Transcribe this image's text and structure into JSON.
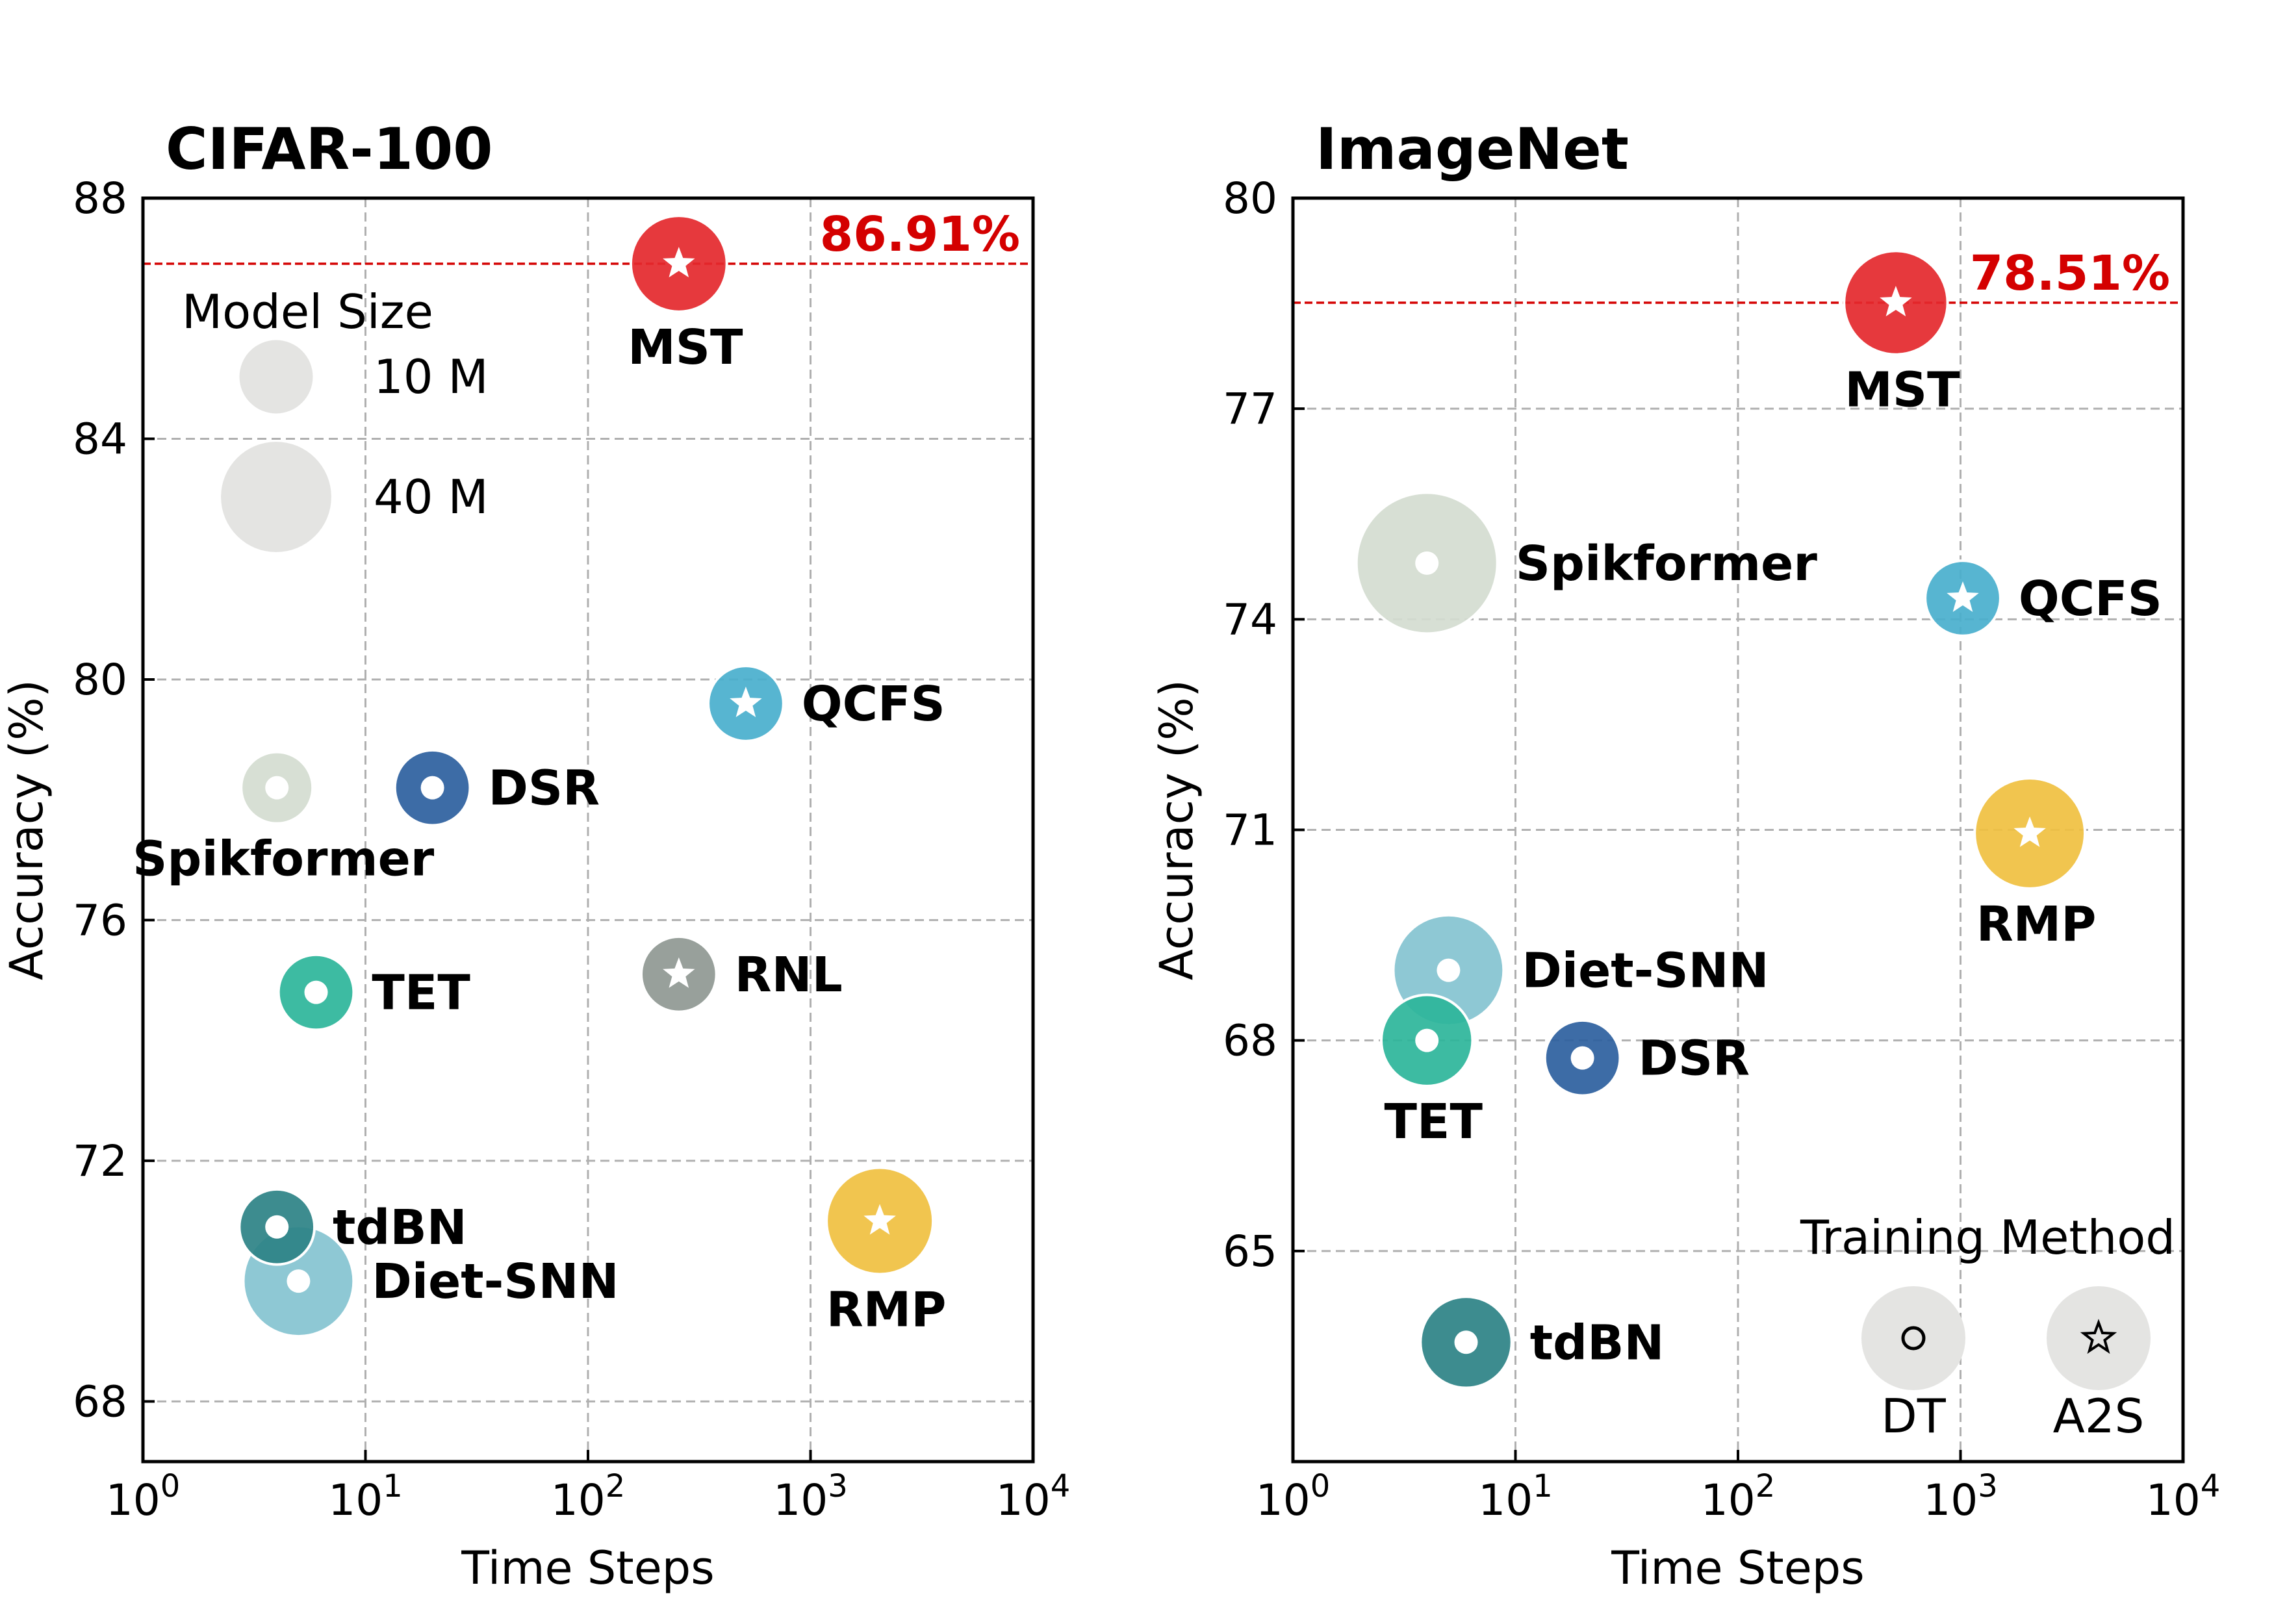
{
  "chart_data": [
    {
      "type": "scatter",
      "title": "CIFAR-100",
      "xlabel": "Time Steps",
      "ylabel": "Accuracy (%)",
      "xscale": "log",
      "xlim": [
        1,
        10000
      ],
      "ylim": [
        67,
        88
      ],
      "yticks": [
        68,
        72,
        76,
        80,
        84,
        88
      ],
      "grid": true,
      "reference": {
        "value": 86.91,
        "label": "86.91%",
        "color": "#d40000"
      },
      "size_legend": {
        "title": "Model Size",
        "entries": [
          {
            "label": "10 M",
            "size": 10
          },
          {
            "label": "40 M",
            "size": 40
          }
        ]
      },
      "points": [
        {
          "name": "MST",
          "x": 256,
          "y": 86.91,
          "size": 26,
          "method": "A2S",
          "color": "#e4282d",
          "label_pos": "below"
        },
        {
          "name": "QCFS",
          "x": 512,
          "y": 79.6,
          "size": 11,
          "method": "A2S",
          "color": "#49afcd",
          "label_pos": "right"
        },
        {
          "name": "Spikformer",
          "x": 4,
          "y": 78.2,
          "size": 9,
          "method": "DT",
          "color": "#d4dcd0",
          "label_pos": "below"
        },
        {
          "name": "DSR",
          "x": 20,
          "y": 78.2,
          "size": 11,
          "method": "DT",
          "color": "#2c5f9e",
          "label_pos": "right"
        },
        {
          "name": "RNL",
          "x": 256,
          "y": 75.1,
          "size": 11,
          "method": "A2S",
          "color": "#8f9893",
          "label_pos": "right"
        },
        {
          "name": "TET",
          "x": 6,
          "y": 74.8,
          "size": 11,
          "method": "DT",
          "color": "#2db59a",
          "label_pos": "right"
        },
        {
          "name": "tdBN",
          "x": 4,
          "y": 70.9,
          "size": 11,
          "method": "DT",
          "color": "#2d8285",
          "label_pos": "right"
        },
        {
          "name": "Diet-SNN",
          "x": 5,
          "y": 70.0,
          "size": 40,
          "method": "DT",
          "color": "#84c3d0",
          "label_pos": "right"
        },
        {
          "name": "RMP",
          "x": 2048,
          "y": 71.0,
          "size": 36,
          "method": "A2S",
          "color": "#f0c040",
          "label_pos": "below"
        }
      ]
    },
    {
      "type": "scatter",
      "title": "ImageNet",
      "xlabel": "Time Steps",
      "ylabel": "Accuracy (%)",
      "xscale": "log",
      "xlim": [
        1,
        10000
      ],
      "ylim": [
        62,
        80
      ],
      "yticks": [
        65,
        68,
        71,
        74,
        77,
        80
      ],
      "grid": true,
      "reference": {
        "value": 78.51,
        "label": "78.51%",
        "color": "#d40000"
      },
      "method_legend": {
        "title": "Training Method",
        "entries": [
          {
            "label": "DT",
            "marker": "circle"
          },
          {
            "label": "A2S",
            "marker": "star"
          }
        ]
      },
      "points": [
        {
          "name": "MST",
          "x": 512,
          "y": 78.51,
          "size": 33,
          "method": "A2S",
          "color": "#e4282d",
          "label_pos": "below"
        },
        {
          "name": "Spikformer",
          "x": 4,
          "y": 74.8,
          "size": 80,
          "method": "DT",
          "color": "#d4dcd0",
          "label_pos": "right"
        },
        {
          "name": "QCFS",
          "x": 1024,
          "y": 74.3,
          "size": 11,
          "method": "A2S",
          "color": "#49afcd",
          "label_pos": "right"
        },
        {
          "name": "RMP",
          "x": 2048,
          "y": 70.95,
          "size": 40,
          "method": "A2S",
          "color": "#f0c040",
          "label_pos": "below"
        },
        {
          "name": "Diet-SNN",
          "x": 5,
          "y": 69.0,
          "size": 40,
          "method": "DT",
          "color": "#84c3d0",
          "label_pos": "right"
        },
        {
          "name": "TET",
          "x": 4,
          "y": 68.0,
          "size": 22,
          "method": "DT",
          "color": "#2db59a",
          "label_pos": "below"
        },
        {
          "name": "DSR",
          "x": 20,
          "y": 67.75,
          "size": 11,
          "method": "DT",
          "color": "#2c5f9e",
          "label_pos": "right"
        },
        {
          "name": "tdBN",
          "x": 6,
          "y": 63.7,
          "size": 22,
          "method": "DT",
          "color": "#2d8285",
          "label_pos": "right"
        }
      ]
    }
  ]
}
